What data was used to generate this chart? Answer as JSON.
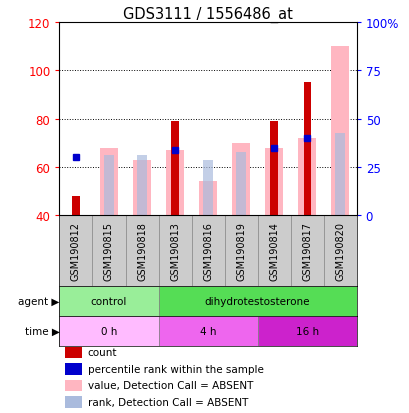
{
  "title": "GDS3111 / 1556486_at",
  "samples": [
    "GSM190812",
    "GSM190815",
    "GSM190818",
    "GSM190813",
    "GSM190816",
    "GSM190819",
    "GSM190814",
    "GSM190817",
    "GSM190820"
  ],
  "count_values": [
    48,
    0,
    0,
    79,
    0,
    0,
    79,
    95,
    0
  ],
  "rank_values": [
    64,
    0,
    0,
    67,
    0,
    0,
    68,
    72,
    0
  ],
  "pink_bar_top": [
    40,
    68,
    63,
    67,
    54,
    70,
    68,
    72,
    110
  ],
  "light_blue_top": [
    40,
    65,
    65,
    40,
    63,
    66,
    40,
    40,
    74
  ],
  "ymin": 40,
  "ylim_left": [
    40,
    120
  ],
  "ylim_right": [
    0,
    100
  ],
  "yticks_left": [
    40,
    60,
    80,
    100,
    120
  ],
  "ytick_labels_left": [
    "40",
    "60",
    "80",
    "100",
    "120"
  ],
  "yticks_right": [
    0,
    25,
    50,
    75,
    100
  ],
  "ytick_labels_right": [
    "0",
    "25",
    "50",
    "75",
    "100%"
  ],
  "agent_groups": [
    {
      "label": "control",
      "start": 0,
      "end": 3,
      "color": "#99ee99"
    },
    {
      "label": "dihydrotestosterone",
      "start": 3,
      "end": 9,
      "color": "#55dd55"
    }
  ],
  "time_groups": [
    {
      "label": "0 h",
      "start": 0,
      "end": 3,
      "color": "#ffbbff"
    },
    {
      "label": "4 h",
      "start": 3,
      "end": 6,
      "color": "#ee66ee"
    },
    {
      "label": "16 h",
      "start": 6,
      "end": 9,
      "color": "#cc22cc"
    }
  ],
  "legend_items": [
    {
      "label": "count",
      "color": "#cc0000",
      "marker": "s"
    },
    {
      "label": "percentile rank within the sample",
      "color": "#0000cc",
      "marker": "s"
    },
    {
      "label": "value, Detection Call = ABSENT",
      "color": "#ffb6c1",
      "marker": "s"
    },
    {
      "label": "rank, Detection Call = ABSENT",
      "color": "#aabbdd",
      "marker": "s"
    }
  ],
  "count_color": "#cc0000",
  "rank_color": "#0000cc",
  "pink_color": "#ffb6c1",
  "light_blue_color": "#aabbdd",
  "sample_bg": "#cccccc",
  "plot_bg": "#ffffff"
}
